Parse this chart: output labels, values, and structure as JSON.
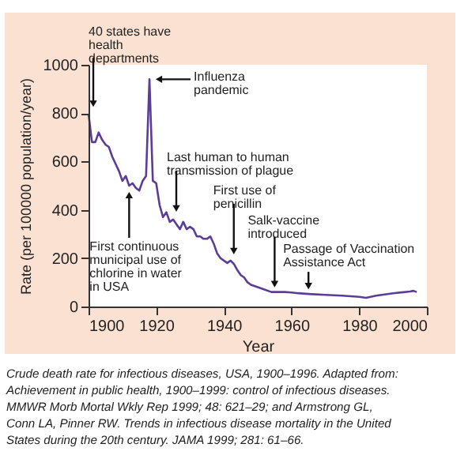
{
  "chart_data": {
    "type": "line",
    "xlabel": "Year",
    "ylabel": "Rate (per 100000 population/year)",
    "x": [
      1900,
      1901,
      1902,
      1903,
      1904,
      1905,
      1906,
      1907,
      1908,
      1909,
      1910,
      1911,
      1912,
      1913,
      1914,
      1915,
      1916,
      1917,
      1918,
      1919,
      1920,
      1921,
      1922,
      1923,
      1924,
      1925,
      1926,
      1927,
      1928,
      1929,
      1930,
      1931,
      1932,
      1933,
      1934,
      1935,
      1936,
      1937,
      1938,
      1939,
      1940,
      1941,
      1942,
      1943,
      1944,
      1945,
      1946,
      1947,
      1948,
      1949,
      1950,
      1952,
      1954,
      1956,
      1958,
      1960,
      1962,
      1965,
      1970,
      1975,
      1980,
      1982,
      1985,
      1990,
      1995,
      1996,
      1997
    ],
    "series": [
      {
        "color": "#5b3d99",
        "values": [
          797,
          680,
          680,
          720,
          690,
          670,
          660,
          620,
          590,
          560,
          520,
          540,
          500,
          510,
          490,
          480,
          520,
          540,
          940,
          520,
          510,
          420,
          370,
          390,
          350,
          360,
          340,
          320,
          350,
          320,
          330,
          320,
          290,
          290,
          280,
          280,
          290,
          260,
          220,
          200,
          190,
          180,
          190,
          175,
          150,
          130,
          120,
          100,
          90,
          85,
          80,
          70,
          60,
          60,
          60,
          58,
          55,
          52,
          48,
          45,
          40,
          36,
          45,
          55,
          62,
          65,
          60
        ]
      }
    ],
    "xlim": [
      1900,
      2000
    ],
    "xticks": [
      1900,
      1920,
      1940,
      1960,
      1980,
      2000
    ],
    "ylim": [
      0,
      1000
    ],
    "yticks": [
      0,
      200,
      400,
      600,
      800,
      1000
    ],
    "annotations": [
      {
        "text": "40 states have\nhealth\ndepartments",
        "x": 1900,
        "y": 800
      },
      {
        "text": "Influenza\npandemic",
        "x": 1918,
        "y": 940
      },
      {
        "text": "Last human to human\ntransmission of plague",
        "x": 1925,
        "y": 360
      },
      {
        "text": "First continuous\nmunicipal use of\nchlorine in water\nin USA",
        "x": 1912,
        "y": 500
      },
      {
        "text": "First use of\npenicillin",
        "x": 1942,
        "y": 190
      },
      {
        "text": "Salk-vaccine\nintroduced",
        "x": 1955,
        "y": 60
      },
      {
        "text": "Passage of Vaccination\nAssistance Act",
        "x": 1965,
        "y": 52
      },
      "Crude death rate for infectious diseases, USA, 1900–1996. Adapted from:\nAchievement in public health, 1900–1999: control of infectious diseases.\nMMWR Morb Mortal Wkly Rep 1999; 48: 621–29; and Armstrong GL,\nConn LA, Pinner RW. Trends in infectious disease mortality in the United\nStates during the 20th century. JAMA 1999; 281: 61–66."
    ]
  }
}
